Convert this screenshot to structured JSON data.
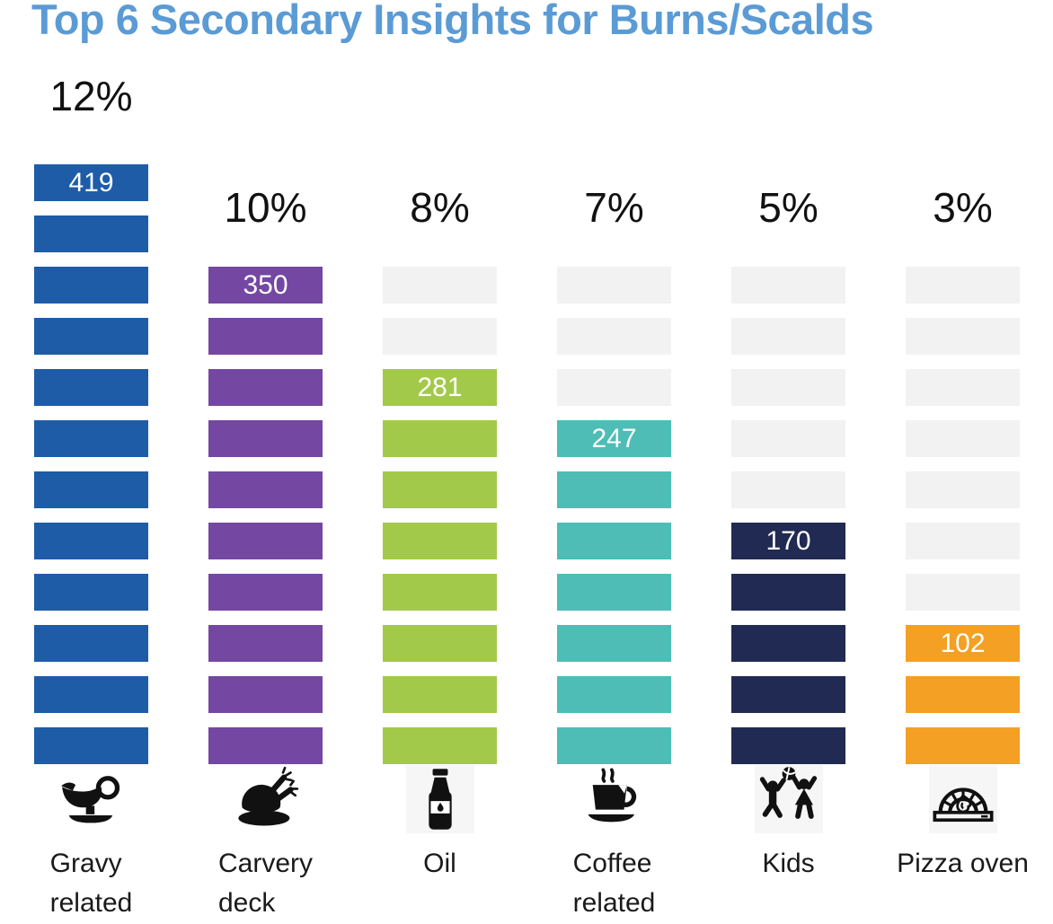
{
  "title": "Top 6 Secondary Insights for Burns/Scalds",
  "colors": {
    "title": "#5B9BD5",
    "placeholder": "#F2F2F2",
    "value_text": "#FFFFFF",
    "label_text": "#1A1A1A",
    "percent_text": "#111111",
    "icon": "#111111"
  },
  "chart_data": {
    "type": "bar",
    "subtype": "pictogram-unit-columns",
    "title": "Top 6 Secondary Insights for Burns/Scalds",
    "categories": [
      "Gravy related",
      "Carvery deck",
      "Oil",
      "Coffee related",
      "Kids",
      "Pizza oven"
    ],
    "category_lines": [
      [
        "Gravy",
        "related"
      ],
      [
        "Carvery",
        "deck"
      ],
      [
        "Oil"
      ],
      [
        "Coffee",
        "related"
      ],
      [
        "Kids"
      ],
      [
        "Pizza oven"
      ]
    ],
    "values": [
      419,
      350,
      281,
      247,
      170,
      102
    ],
    "percentages": [
      12,
      10,
      8,
      7,
      5,
      3
    ],
    "percent_labels": [
      "12%",
      "10%",
      "8%",
      "7%",
      "5%",
      "3%"
    ],
    "bar_colors": [
      "#1E5CA8",
      "#7447A2",
      "#A3C94A",
      "#4DBDB5",
      "#212A52",
      "#F4A024"
    ],
    "icons": [
      "gravy-boat",
      "turkey-platter",
      "oil-bottle",
      "coffee-cup",
      "kids-ball",
      "pizza-oven"
    ],
    "total_slots": 12,
    "placeholder_slots_start": 3,
    "unit": "1 segment = 1%",
    "grid": false,
    "legend_position": "none",
    "xlabel": "",
    "ylabel": ""
  }
}
